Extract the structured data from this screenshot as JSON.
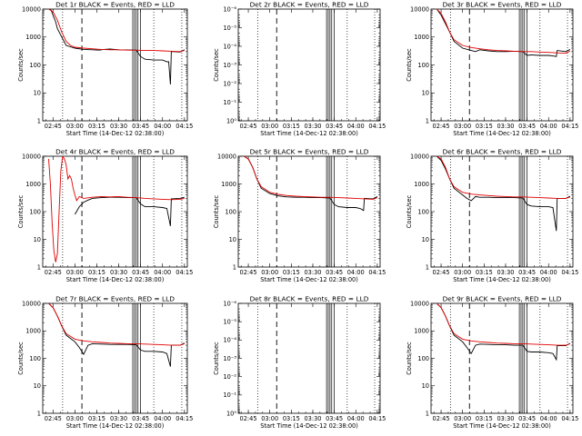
{
  "chart_data": [
    {
      "type": "line",
      "title": "Det 1r BLACK = Events, RED = LLD",
      "xlabel": "Start Time (14-Dec-12 02:38:00)",
      "ylabel": "Counts/sec",
      "yscale": "log",
      "ylim": [
        1,
        10000
      ],
      "xticks": [
        "02:45",
        "03:00",
        "03:15",
        "03:30",
        "03:45",
        "04:00",
        "04:15"
      ],
      "yticks": [
        "1",
        "10",
        "100",
        "1000",
        "10000"
      ],
      "series": [
        {
          "color": "#000000",
          "x": [
            2.7,
            2.72,
            2.73,
            2.75,
            2.78,
            2.8,
            2.85,
            2.9,
            3.0,
            3.1,
            3.2,
            3.28,
            3.33,
            3.4,
            3.5,
            3.6,
            3.7,
            3.75,
            3.8,
            3.9,
            4.0,
            4.05,
            4.07,
            4.09,
            4.1,
            4.12,
            4.2,
            4.25
          ],
          "y": [
            10000,
            9500,
            9000,
            6000,
            3500,
            2000,
            1000,
            500,
            400,
            360,
            350,
            340,
            360,
            370,
            350,
            345,
            340,
            200,
            160,
            150,
            150,
            130,
            130,
            20,
            300,
            300,
            290,
            350
          ]
        },
        {
          "color": "#e00000",
          "x": [
            2.7,
            2.75,
            2.8,
            2.85,
            2.9,
            2.95,
            3.0,
            3.1,
            3.2,
            3.3,
            3.4,
            3.5,
            3.6,
            3.7,
            3.8,
            3.9,
            4.0,
            4.1,
            4.2,
            4.25
          ],
          "y": [
            10000,
            8000,
            4000,
            1500,
            700,
            500,
            430,
            400,
            380,
            360,
            350,
            350,
            340,
            340,
            330,
            330,
            320,
            310,
            300,
            330
          ]
        }
      ],
      "vlines_dotted": [
        2.86,
        3.9,
        4.22
      ],
      "vlines_dashed": [
        3.08
      ],
      "vlines_solid": [
        3.66,
        3.68,
        3.7,
        3.72,
        3.75
      ]
    },
    {
      "type": "line",
      "title": "Det 2r BLACK = Events, RED = LLD",
      "xlabel": "Start Time (14-Dec-12 02:38:00)",
      "ylabel": "Counts/sec",
      "yscale": "log",
      "ylim": [
        1,
        1e-06
      ],
      "xticks": [
        "02:45",
        "03:00",
        "03:15",
        "03:30",
        "03:45",
        "04:00",
        "04:15"
      ],
      "yticks": [
        "10⁰",
        "10⁻¹",
        "10⁻²",
        "10⁻³",
        "10⁻⁴",
        "10⁻⁵",
        "10⁻⁶"
      ],
      "series": [],
      "vlines_dotted": [
        2.86,
        3.9,
        4.22
      ],
      "vlines_dashed": [
        3.08
      ],
      "vlines_solid": [
        3.66,
        3.68,
        3.7,
        3.72,
        3.75
      ]
    },
    {
      "type": "line",
      "title": "Det 3r BLACK = Events, RED = LLD",
      "xlabel": "Start Time (14-Dec-12 02:38:00)",
      "ylabel": "Counts/sec",
      "yscale": "log",
      "ylim": [
        1,
        10000
      ],
      "xticks": [
        "02:45",
        "03:00",
        "03:15",
        "03:30",
        "03:45",
        "04:00",
        "04:15"
      ],
      "yticks": [
        "1",
        "10",
        "100",
        "1000",
        "10000"
      ],
      "series": [
        {
          "color": "#000000",
          "x": [
            2.7,
            2.75,
            2.8,
            2.85,
            2.9,
            3.0,
            3.1,
            3.15,
            3.2,
            3.3,
            3.4,
            3.5,
            3.6,
            3.7,
            3.75,
            3.8,
            3.9,
            4.0,
            4.05,
            4.09,
            4.1,
            4.2,
            4.25
          ],
          "y": [
            10000,
            6000,
            3000,
            1500,
            700,
            400,
            330,
            300,
            350,
            320,
            300,
            300,
            310,
            300,
            220,
            230,
            220,
            220,
            210,
            200,
            330,
            300,
            360
          ]
        },
        {
          "color": "#e00000",
          "x": [
            2.7,
            2.75,
            2.8,
            2.85,
            2.9,
            3.0,
            3.1,
            3.2,
            3.3,
            3.4,
            3.5,
            3.6,
            3.7,
            3.8,
            3.9,
            4.0,
            4.1,
            4.2,
            4.25
          ],
          "y": [
            10000,
            7000,
            3500,
            1500,
            800,
            500,
            420,
            380,
            350,
            330,
            320,
            310,
            300,
            300,
            290,
            280,
            270,
            260,
            320
          ]
        }
      ],
      "vlines_dotted": [
        2.86,
        3.9,
        4.22
      ],
      "vlines_dashed": [
        3.08
      ],
      "vlines_solid": [
        3.66,
        3.68,
        3.7,
        3.72,
        3.75
      ]
    },
    {
      "type": "line",
      "title": "Det 4r BLACK = Events, RED = LLD",
      "xlabel": "Start Time (14-Dec-12 02:38:00)",
      "ylabel": "Counts/sec",
      "yscale": "log",
      "ylim": [
        1,
        10000
      ],
      "xticks": [
        "02:45",
        "03:00",
        "03:15",
        "03:30",
        "03:45",
        "04:00",
        "04:15"
      ],
      "yticks": [
        "1",
        "10",
        "100",
        "1000",
        "10000"
      ],
      "series": [
        {
          "color": "#000000",
          "x": [
            3.0,
            3.05,
            3.1,
            3.15,
            3.2,
            3.3,
            3.4,
            3.5,
            3.6,
            3.7,
            3.75,
            3.8,
            3.9,
            4.0,
            4.05,
            4.09,
            4.1,
            4.2,
            4.25
          ],
          "y": [
            80,
            150,
            220,
            260,
            300,
            320,
            330,
            330,
            320,
            320,
            190,
            150,
            150,
            140,
            130,
            30,
            290,
            300,
            330
          ]
        },
        {
          "color": "#e00000",
          "x": [
            2.7,
            2.72,
            2.74,
            2.76,
            2.78,
            2.8,
            2.82,
            2.84,
            2.86,
            2.88,
            2.9,
            2.92,
            2.94,
            2.96,
            2.98,
            3.0,
            3.02,
            3.05,
            3.1,
            3.2,
            3.3,
            3.4,
            3.5,
            3.6,
            3.7,
            3.8,
            3.9,
            4.0,
            4.1,
            4.2,
            4.25
          ],
          "y": [
            8000,
            1000,
            40,
            4,
            1.5,
            3,
            100,
            3000,
            10000,
            8000,
            5000,
            1500,
            2000,
            1500,
            700,
            400,
            250,
            350,
            300,
            330,
            350,
            340,
            350,
            330,
            320,
            300,
            290,
            280,
            270,
            280,
            300
          ]
        }
      ],
      "vlines_dotted": [
        2.86,
        3.9,
        4.22
      ],
      "vlines_dashed": [
        3.08
      ],
      "vlines_solid": [
        3.66,
        3.68,
        3.7,
        3.72,
        3.75
      ]
    },
    {
      "type": "line",
      "title": "Det 5r BLACK = Events, RED = LLD",
      "xlabel": "Start Time (14-Dec-12 02:38:00)",
      "ylabel": "Counts/sec",
      "yscale": "log",
      "ylim": [
        1,
        10000
      ],
      "xticks": [
        "02:45",
        "03:00",
        "03:15",
        "03:30",
        "03:45",
        "04:00",
        "04:15"
      ],
      "yticks": [
        "1",
        "10",
        "100",
        "1000",
        "10000"
      ],
      "series": [
        {
          "color": "#000000",
          "x": [
            2.7,
            2.75,
            2.8,
            2.85,
            2.9,
            3.0,
            3.1,
            3.2,
            3.3,
            3.4,
            3.5,
            3.6,
            3.7,
            3.75,
            3.8,
            3.9,
            4.0,
            4.05,
            4.09,
            4.1,
            4.2,
            4.25
          ],
          "y": [
            10000,
            8000,
            4000,
            1500,
            700,
            450,
            370,
            340,
            330,
            330,
            320,
            320,
            310,
            180,
            150,
            140,
            140,
            130,
            110,
            300,
            290,
            350
          ]
        },
        {
          "color": "#e00000",
          "x": [
            2.7,
            2.75,
            2.8,
            2.85,
            2.9,
            3.0,
            3.1,
            3.2,
            3.3,
            3.4,
            3.5,
            3.6,
            3.7,
            3.8,
            3.9,
            4.0,
            4.1,
            4.2,
            4.25
          ],
          "y": [
            10000,
            8000,
            4000,
            1500,
            800,
            500,
            420,
            380,
            360,
            350,
            340,
            330,
            330,
            320,
            310,
            300,
            290,
            280,
            320
          ]
        }
      ],
      "vlines_dotted": [
        2.86,
        3.9,
        4.22
      ],
      "vlines_dashed": [
        3.08
      ],
      "vlines_solid": [
        3.66,
        3.68,
        3.7,
        3.72,
        3.75
      ]
    },
    {
      "type": "line",
      "title": "Det 6r BLACK = Events, RED = LLD",
      "xlabel": "Start Time (14-Dec-12 02:38:00)",
      "ylabel": "Counts/sec",
      "yscale": "log",
      "ylim": [
        1,
        10000
      ],
      "xticks": [
        "02:45",
        "03:00",
        "03:15",
        "03:30",
        "03:45",
        "04:00",
        "04:15"
      ],
      "yticks": [
        "1",
        "10",
        "100",
        "1000",
        "10000"
      ],
      "series": [
        {
          "color": "#000000",
          "x": [
            2.7,
            2.75,
            2.8,
            2.85,
            2.9,
            3.0,
            3.05,
            3.1,
            3.15,
            3.2,
            3.3,
            3.4,
            3.5,
            3.6,
            3.7,
            3.75,
            3.8,
            3.9,
            4.0,
            4.05,
            4.09,
            4.1,
            4.2,
            4.25
          ],
          "y": [
            10000,
            7000,
            3500,
            1500,
            700,
            400,
            300,
            250,
            350,
            330,
            330,
            320,
            320,
            320,
            310,
            180,
            160,
            150,
            150,
            140,
            20,
            300,
            300,
            360
          ]
        },
        {
          "color": "#e00000",
          "x": [
            2.7,
            2.75,
            2.8,
            2.85,
            2.9,
            3.0,
            3.1,
            3.2,
            3.3,
            3.4,
            3.5,
            3.6,
            3.7,
            3.8,
            3.9,
            4.0,
            4.1,
            4.2,
            4.25
          ],
          "y": [
            10000,
            8000,
            4000,
            1500,
            800,
            500,
            430,
            400,
            380,
            360,
            350,
            340,
            340,
            330,
            320,
            310,
            300,
            300,
            340
          ]
        }
      ],
      "vlines_dotted": [
        2.86,
        3.9,
        4.22
      ],
      "vlines_dashed": [
        3.08
      ],
      "vlines_solid": [
        3.66,
        3.68,
        3.7,
        3.72,
        3.75
      ]
    },
    {
      "type": "line",
      "title": "Det 7r BLACK = Events, RED = LLD",
      "xlabel": "Start Time (14-Dec-12 02:38:00)",
      "ylabel": "Counts/sec",
      "yscale": "log",
      "ylim": [
        1,
        10000
      ],
      "xticks": [
        "02:45",
        "03:00",
        "03:15",
        "03:30",
        "03:45",
        "04:00",
        "04:15"
      ],
      "yticks": [
        "1",
        "10",
        "100",
        "1000",
        "10000"
      ],
      "series": [
        {
          "color": "#000000",
          "x": [
            2.7,
            2.75,
            2.8,
            2.85,
            2.9,
            3.0,
            3.05,
            3.1,
            3.15,
            3.2,
            3.3,
            3.4,
            3.5,
            3.6,
            3.7,
            3.75,
            3.8,
            3.9,
            4.0,
            4.05,
            4.09,
            4.1,
            4.2,
            4.25
          ],
          "y": [
            10000,
            7000,
            3500,
            1500,
            700,
            400,
            250,
            140,
            300,
            340,
            330,
            320,
            320,
            320,
            310,
            200,
            180,
            180,
            170,
            150,
            50,
            300,
            300,
            360
          ]
        },
        {
          "color": "#e00000",
          "x": [
            2.7,
            2.75,
            2.8,
            2.85,
            2.9,
            3.0,
            3.1,
            3.2,
            3.3,
            3.4,
            3.5,
            3.6,
            3.7,
            3.8,
            3.9,
            4.0,
            4.1,
            4.2,
            4.25
          ],
          "y": [
            10000,
            7000,
            3500,
            1500,
            800,
            500,
            430,
            400,
            380,
            360,
            350,
            340,
            340,
            330,
            320,
            310,
            300,
            300,
            340
          ]
        }
      ],
      "vlines_dotted": [
        2.86,
        3.9,
        4.22
      ],
      "vlines_dashed": [
        3.08
      ],
      "vlines_solid": [
        3.66,
        3.68,
        3.7,
        3.72,
        3.75
      ]
    },
    {
      "type": "line",
      "title": "Det 8r BLACK = Events, RED = LLD",
      "xlabel": "Start Time (14-Dec-12 02:38:00)",
      "ylabel": "Counts/sec",
      "yscale": "log",
      "ylim": [
        1,
        1e-06
      ],
      "xticks": [
        "02:45",
        "03:00",
        "03:15",
        "03:30",
        "03:45",
        "04:00",
        "04:15"
      ],
      "yticks": [
        "10⁰",
        "10⁻¹",
        "10⁻²",
        "10⁻³",
        "10⁻⁴",
        "10⁻⁵",
        "10⁻⁶"
      ],
      "series": [],
      "vlines_dotted": [
        2.86,
        3.9,
        4.22
      ],
      "vlines_dashed": [
        3.08
      ],
      "vlines_solid": [
        3.66,
        3.68,
        3.7,
        3.72,
        3.75
      ]
    },
    {
      "type": "line",
      "title": "Det 9r BLACK = Events, RED = LLD",
      "xlabel": "Start Time (14-Dec-12 02:38:00)",
      "ylabel": "Counts/sec",
      "yscale": "log",
      "ylim": [
        1,
        10000
      ],
      "xticks": [
        "02:45",
        "03:00",
        "03:15",
        "03:30",
        "03:45",
        "04:00",
        "04:15"
      ],
      "yticks": [
        "1",
        "10",
        "100",
        "1000",
        "10000"
      ],
      "series": [
        {
          "color": "#000000",
          "x": [
            2.7,
            2.75,
            2.8,
            2.85,
            2.9,
            3.0,
            3.05,
            3.1,
            3.15,
            3.2,
            3.3,
            3.4,
            3.5,
            3.6,
            3.7,
            3.75,
            3.8,
            3.9,
            4.0,
            4.05,
            4.09,
            4.1,
            4.2,
            4.25
          ],
          "y": [
            10000,
            7000,
            3500,
            1500,
            700,
            400,
            250,
            150,
            300,
            330,
            320,
            310,
            310,
            300,
            300,
            180,
            170,
            170,
            160,
            150,
            90,
            290,
            290,
            350
          ]
        },
        {
          "color": "#e00000",
          "x": [
            2.7,
            2.75,
            2.8,
            2.85,
            2.9,
            3.0,
            3.1,
            3.2,
            3.3,
            3.4,
            3.5,
            3.6,
            3.7,
            3.8,
            3.9,
            4.0,
            4.1,
            4.2,
            4.25
          ],
          "y": [
            10000,
            7000,
            3500,
            1500,
            800,
            500,
            430,
            400,
            380,
            360,
            350,
            340,
            340,
            330,
            320,
            310,
            300,
            300,
            340
          ]
        }
      ],
      "vlines_dotted": [
        2.86,
        3.9,
        4.22
      ],
      "vlines_dashed": [
        3.08
      ],
      "vlines_solid": [
        3.66,
        3.68,
        3.7,
        3.72,
        3.75
      ]
    }
  ]
}
